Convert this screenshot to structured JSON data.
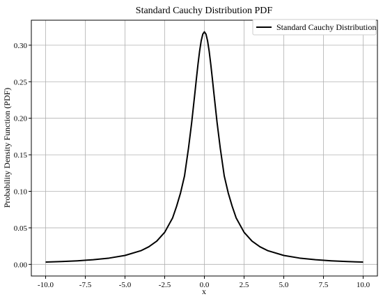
{
  "chart_data": {
    "type": "line",
    "title": "Standard Cauchy Distribution PDF",
    "xlabel": "x",
    "ylabel": "Probability Density Function (PDF)",
    "xlim": [
      -10.9,
      10.9
    ],
    "ylim": [
      -0.0159,
      0.3342
    ],
    "xticks": [
      -10.0,
      -7.5,
      -5.0,
      -2.5,
      0.0,
      2.5,
      5.0,
      7.5,
      10.0
    ],
    "xtick_labels": [
      "-10.0",
      "-7.5",
      "-5.0",
      "-2.5",
      "0.0",
      "2.5",
      "5.0",
      "7.5",
      "10.0"
    ],
    "yticks": [
      0.0,
      0.05,
      0.1,
      0.15,
      0.2,
      0.25,
      0.3
    ],
    "ytick_labels": [
      "0.00",
      "0.05",
      "0.10",
      "0.15",
      "0.20",
      "0.25",
      "0.30"
    ],
    "grid": true,
    "legend_position": "top-right",
    "series": [
      {
        "name": "Standard Cauchy Distribution",
        "color": "#000000",
        "x": [
          -10,
          -9,
          -8,
          -7,
          -6,
          -5,
          -4,
          -3.5,
          -3,
          -2.5,
          -2,
          -1.75,
          -1.5,
          -1.25,
          -1,
          -0.8,
          -0.6,
          -0.5,
          -0.4,
          -0.3,
          -0.2,
          -0.1,
          0,
          0.1,
          0.2,
          0.3,
          0.4,
          0.5,
          0.6,
          0.8,
          1,
          1.25,
          1.5,
          1.75,
          2,
          2.5,
          3,
          3.5,
          4,
          5,
          6,
          7,
          8,
          9,
          10
        ],
        "y": [
          0.00315,
          0.00388,
          0.0049,
          0.00637,
          0.0086,
          0.01224,
          0.01872,
          0.02411,
          0.03183,
          0.0439,
          0.06366,
          0.07958,
          0.09794,
          0.12119,
          0.15915,
          0.1941,
          0.23405,
          0.25465,
          0.2744,
          0.29202,
          0.30607,
          0.31515,
          0.31831,
          0.31515,
          0.30607,
          0.29202,
          0.2744,
          0.25465,
          0.23405,
          0.1941,
          0.15915,
          0.12119,
          0.09794,
          0.07958,
          0.06366,
          0.0439,
          0.03183,
          0.02411,
          0.01872,
          0.01224,
          0.0086,
          0.00637,
          0.0049,
          0.00388,
          0.00315
        ]
      }
    ]
  }
}
